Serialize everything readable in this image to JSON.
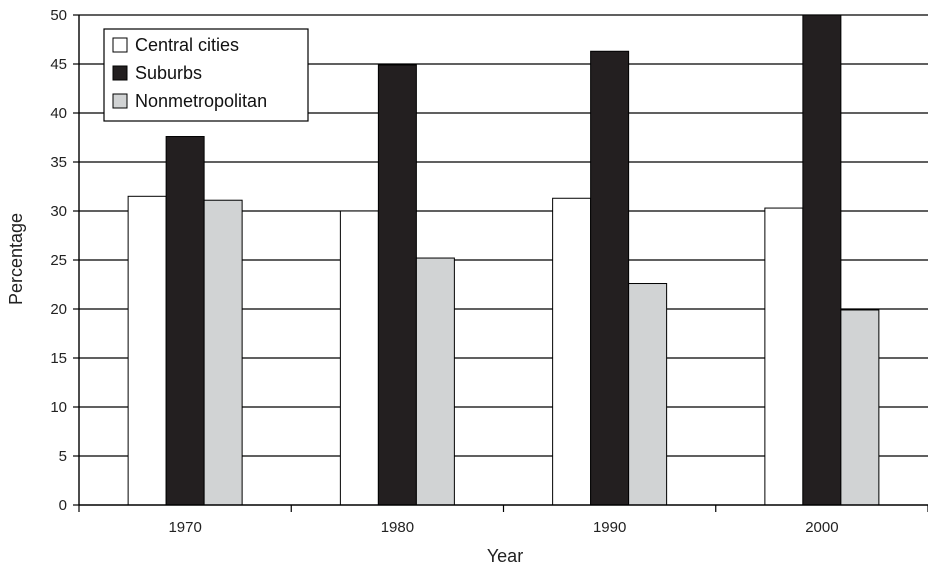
{
  "chart_data": {
    "type": "bar",
    "title": "",
    "xlabel": "Year",
    "ylabel": "Percentage",
    "categories": [
      "1970",
      "1980",
      "1990",
      "2000"
    ],
    "ylim": [
      0,
      50
    ],
    "yticks": [
      0,
      5,
      10,
      15,
      20,
      25,
      30,
      35,
      40,
      45,
      50
    ],
    "grid": "horizontal",
    "legend_position": "top-left",
    "series": [
      {
        "name": "Central cities",
        "color": "#ffffff",
        "values": [
          31.5,
          30.0,
          31.3,
          30.3
        ]
      },
      {
        "name": "Suburbs",
        "color": "#231f20",
        "values": [
          37.6,
          44.9,
          46.3,
          50.0
        ]
      },
      {
        "name": "Nonmetropolitan",
        "color": "#d1d3d4",
        "values": [
          31.1,
          25.2,
          22.6,
          19.9
        ]
      }
    ]
  }
}
